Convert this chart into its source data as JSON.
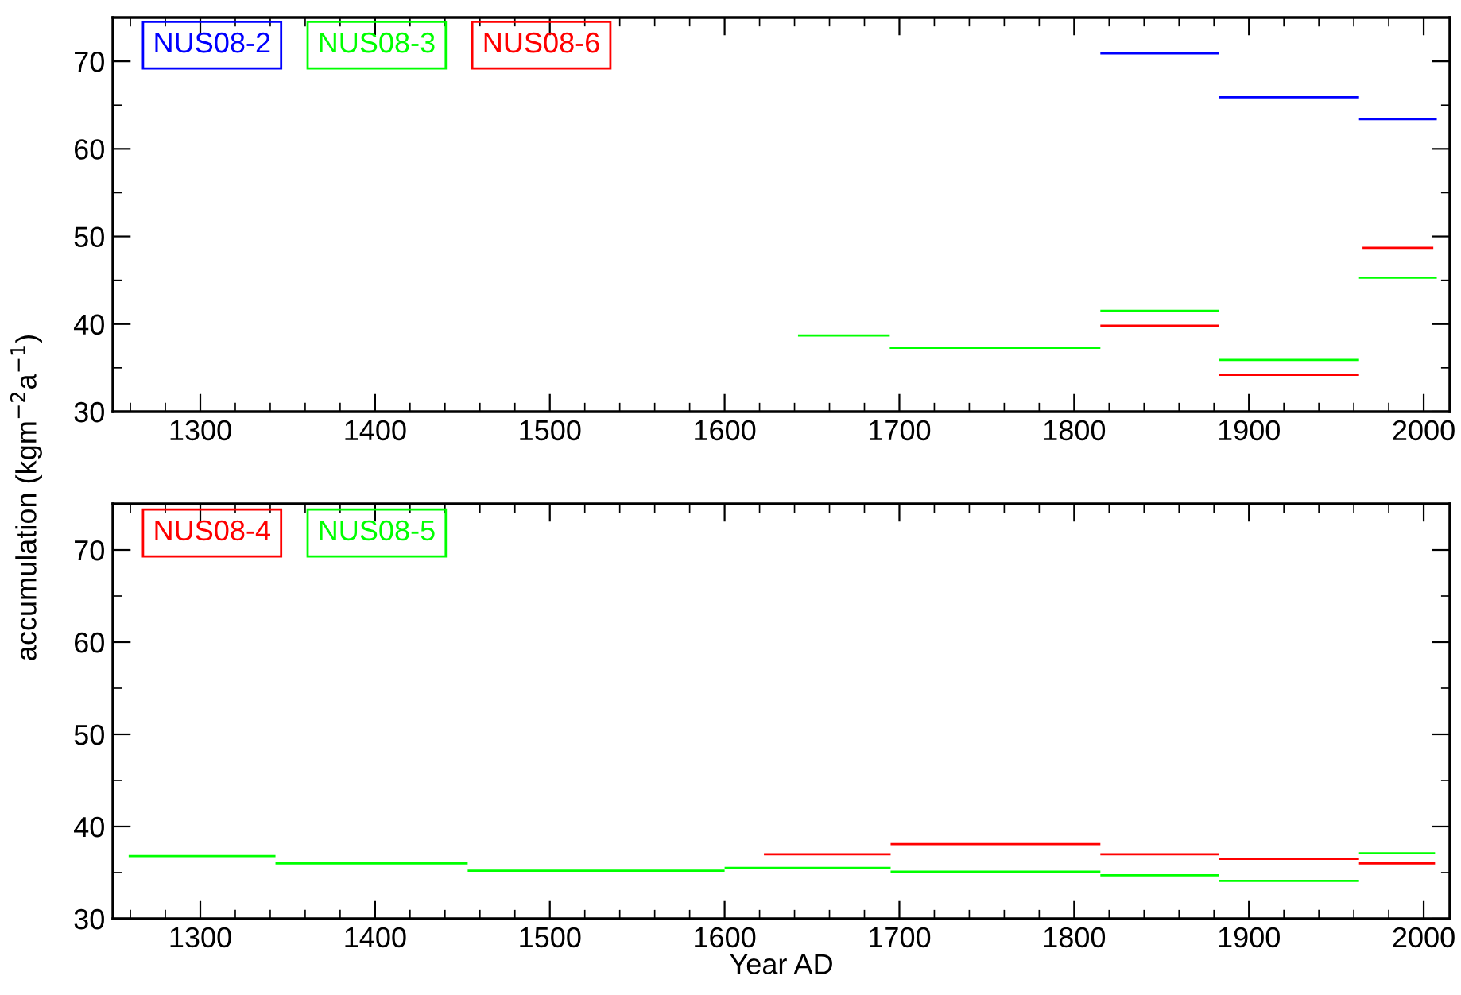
{
  "chart_data": [
    {
      "type": "line",
      "ylabel": "accumulation (kgm$^{−2}$a$^{−1}$)",
      "xlim": [
        1250,
        2015
      ],
      "ylim": [
        30,
        75
      ],
      "xticks": [
        1300,
        1400,
        1500,
        1600,
        1700,
        1800,
        1900,
        2000
      ],
      "yticks": [
        30,
        40,
        50,
        60,
        70
      ],
      "legend": "top left",
      "grid": false,
      "marker": "none",
      "line_style": "solid",
      "series": [
        {
          "name": "NUS08-2",
          "color": "#0000ff",
          "x": [
            1815,
            1883,
            null,
            1883,
            1963,
            null,
            1963,
            2007.5
          ],
          "values": [
            70.9,
            70.9,
            null,
            65.9,
            65.9,
            null,
            63.4,
            63.4
          ]
        },
        {
          "name": "NUS08-3",
          "color": "#00ff00",
          "x": [
            1642,
            1694.5,
            null,
            1694.5,
            1815,
            null,
            1815,
            1883,
            null,
            1883,
            1963,
            null,
            1963,
            2007.5
          ],
          "values": [
            38.7,
            38.7,
            null,
            37.3,
            37.3,
            null,
            41.5,
            41.5,
            null,
            35.9,
            35.9,
            null,
            45.3,
            45.3
          ]
        },
        {
          "name": "NUS08-6",
          "color": "#ff0000",
          "x": [
            1815,
            1883,
            null,
            1883,
            1963,
            null,
            1965,
            2005.5
          ],
          "values": [
            39.8,
            39.8,
            null,
            34.2,
            34.2,
            null,
            48.7,
            48.7
          ]
        }
      ]
    },
    {
      "type": "line",
      "xlabel": "Year AD",
      "xlim": [
        1250,
        2015
      ],
      "ylim": [
        30,
        75
      ],
      "xticks": [
        1300,
        1400,
        1500,
        1600,
        1700,
        1800,
        1900,
        2000
      ],
      "yticks": [
        30,
        40,
        50,
        60,
        70
      ],
      "legend": "top left",
      "grid": false,
      "marker": "none",
      "line_style": "solid",
      "series": [
        {
          "name": "NUS08-4",
          "color": "#ff0000",
          "x": [
            1622.5,
            1695,
            null,
            1695,
            1815,
            null,
            1815,
            1883,
            null,
            1883,
            1963,
            null,
            1963,
            2006.5
          ],
          "values": [
            37.0,
            37.0,
            null,
            38.1,
            38.1,
            null,
            37.0,
            37.0,
            null,
            36.5,
            36.5,
            null,
            36.0,
            36.0
          ]
        },
        {
          "name": "NUS08-5",
          "color": "#00ff00",
          "x": [
            1259,
            1343,
            null,
            1343,
            1453,
            null,
            1453,
            1600,
            null,
            1600,
            1695,
            null,
            1695,
            1815,
            null,
            1815,
            1883,
            null,
            1883,
            1963,
            null,
            1963,
            2006.5
          ],
          "values": [
            36.8,
            36.8,
            null,
            36.0,
            36.0,
            null,
            35.2,
            35.2,
            null,
            35.5,
            35.5,
            null,
            35.1,
            35.1,
            null,
            34.7,
            34.7,
            null,
            34.1,
            34.1,
            null,
            37.1,
            37.1
          ]
        }
      ]
    }
  ]
}
